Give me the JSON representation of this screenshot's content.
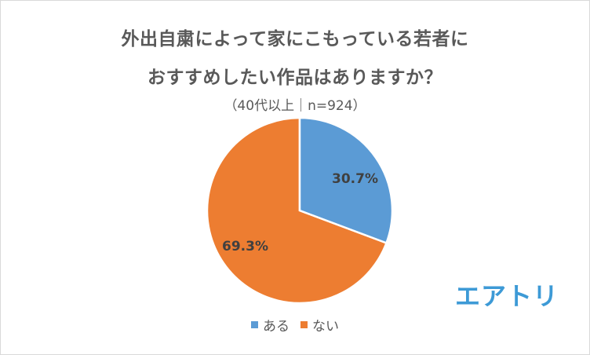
{
  "title": {
    "line1": "外出自粛によって家にこもっている若者に",
    "line2": "おすすめしたい作品はありますか？"
  },
  "subtitle": "（40代以上｜n=924）",
  "legend": [
    {
      "label": "ある",
      "color": "#5b9bd5"
    },
    {
      "label": "ない",
      "color": "#ed7d31"
    }
  ],
  "slice_labels": {
    "aru": "30.7%",
    "nai": "69.3%"
  },
  "logo": "エアトリ",
  "chart_data": {
    "type": "pie",
    "title": "外出自粛によって家にこもっている若者におすすめしたい作品はありますか？",
    "subtitle": "（40代以上｜n=924）",
    "categories": [
      "ある",
      "ない"
    ],
    "values": [
      30.7,
      69.3
    ],
    "colors": [
      "#5b9bd5",
      "#ed7d31"
    ],
    "unit": "%",
    "start_angle": "12 o'clock, clockwise",
    "legend_position": "bottom",
    "data_labels": [
      "30.7%",
      "69.3%"
    ]
  }
}
